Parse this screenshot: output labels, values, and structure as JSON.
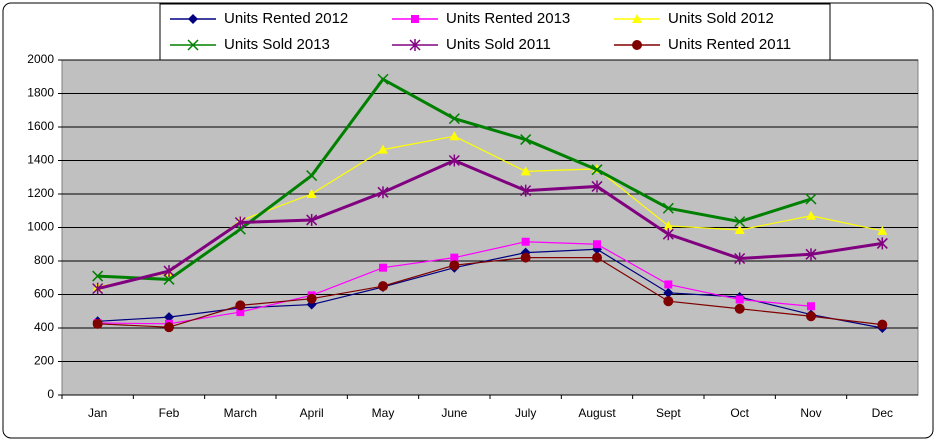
{
  "chart_data": {
    "type": "line",
    "categories": [
      "Jan",
      "Feb",
      "March",
      "April",
      "May",
      "June",
      "July",
      "August",
      "Sept",
      "Oct",
      "Nov",
      "Dec"
    ],
    "series": [
      {
        "name": "Units Rented 2012",
        "color": "#000080",
        "marker": "diamond",
        "values": [
          440,
          465,
          520,
          540,
          645,
          760,
          850,
          870,
          610,
          585,
          480,
          400
        ]
      },
      {
        "name": "Units Rented 2013",
        "color": "#ff00ff",
        "marker": "square",
        "values": [
          430,
          425,
          495,
          595,
          760,
          820,
          915,
          900,
          660,
          570,
          530,
          null
        ]
      },
      {
        "name": "Units Sold 2012",
        "color": "#ffff00",
        "marker": "triangle",
        "values": [
          645,
          730,
          1040,
          1200,
          1465,
          1545,
          1335,
          1350,
          1010,
          985,
          1070,
          980
        ]
      },
      {
        "name": "Units Sold 2013",
        "color": "#008000",
        "marker": "x",
        "values": [
          710,
          690,
          990,
          1310,
          1885,
          1650,
          1525,
          1345,
          1115,
          1035,
          1170,
          null
        ]
      },
      {
        "name": "Units Sold 2011",
        "color": "#800080",
        "marker": "star",
        "values": [
          635,
          740,
          1030,
          1045,
          1210,
          1400,
          1220,
          1245,
          960,
          815,
          840,
          905
        ]
      },
      {
        "name": "Units Rented 2011",
        "color": "#800000",
        "marker": "circle",
        "values": [
          425,
          405,
          535,
          575,
          650,
          775,
          820,
          820,
          560,
          515,
          470,
          420
        ]
      }
    ],
    "ylim": [
      0,
      2000
    ],
    "yticks": [
      0,
      200,
      400,
      600,
      800,
      1000,
      1200,
      1400,
      1600,
      1800,
      2000
    ],
    "grid": true,
    "legend": "top",
    "plot_background": "#c0c0c0"
  }
}
